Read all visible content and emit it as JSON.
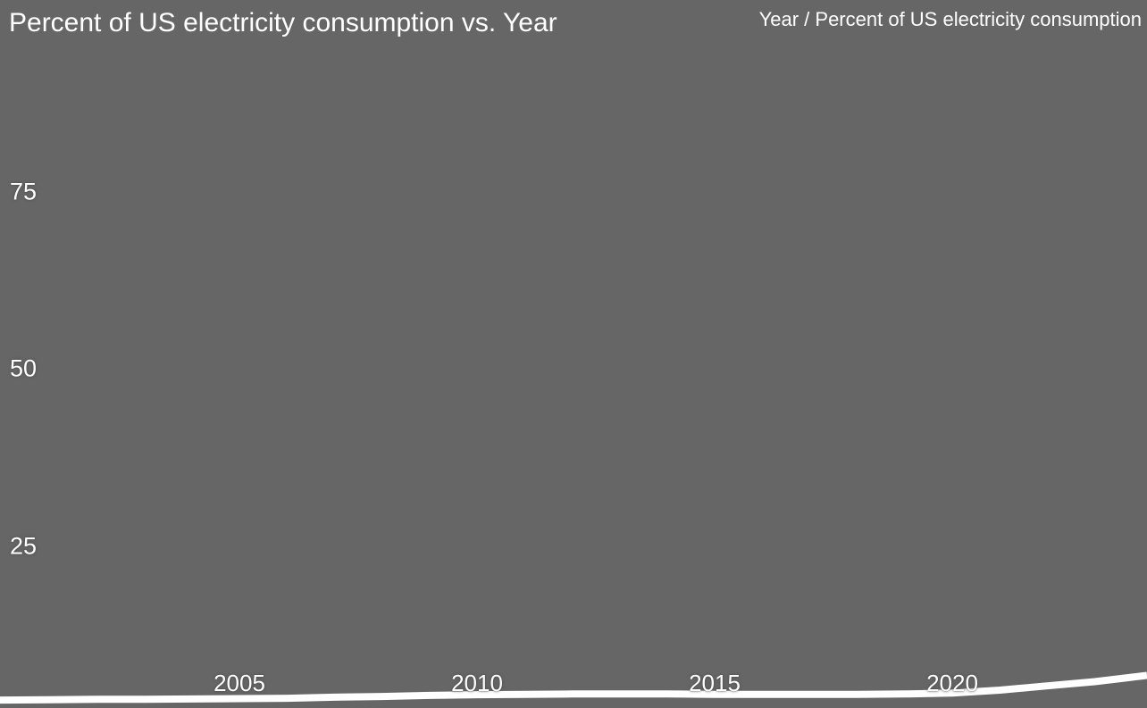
{
  "header": {
    "title": "Percent of US electricity consumption vs. Year",
    "axis_readout": "Year / Percent of US electricity consumption"
  },
  "chart_data": {
    "type": "line",
    "title": "Percent of US electricity consumption vs. Year",
    "xlabel": "Year",
    "ylabel": "Percent of US electricity consumption",
    "x_ticks": [
      "2005",
      "2010",
      "2015",
      "2020"
    ],
    "y_ticks": [
      "25",
      "50",
      "75"
    ],
    "xlim": [
      2000,
      2024
    ],
    "ylim": [
      0,
      100
    ],
    "grid": false,
    "legend_position": "none",
    "colors": {
      "background": "#666666",
      "line": "#ffffff",
      "text": "#ffffff"
    },
    "series": [
      {
        "name": "Percent of US electricity consumption",
        "x": [
          2000,
          2001,
          2002,
          2003,
          2004,
          2005,
          2006,
          2007,
          2008,
          2009,
          2010,
          2011,
          2012,
          2013,
          2014,
          2015,
          2016,
          2017,
          2018,
          2019,
          2020,
          2021,
          2022,
          2023,
          2024
        ],
        "y": [
          3.3,
          3.35,
          3.4,
          3.4,
          3.45,
          3.5,
          3.55,
          3.7,
          3.8,
          3.95,
          4.05,
          4.1,
          4.15,
          4.15,
          4.15,
          4.1,
          4.1,
          4.1,
          4.1,
          4.15,
          4.3,
          4.7,
          5.3,
          5.9,
          6.7
        ]
      }
    ]
  }
}
